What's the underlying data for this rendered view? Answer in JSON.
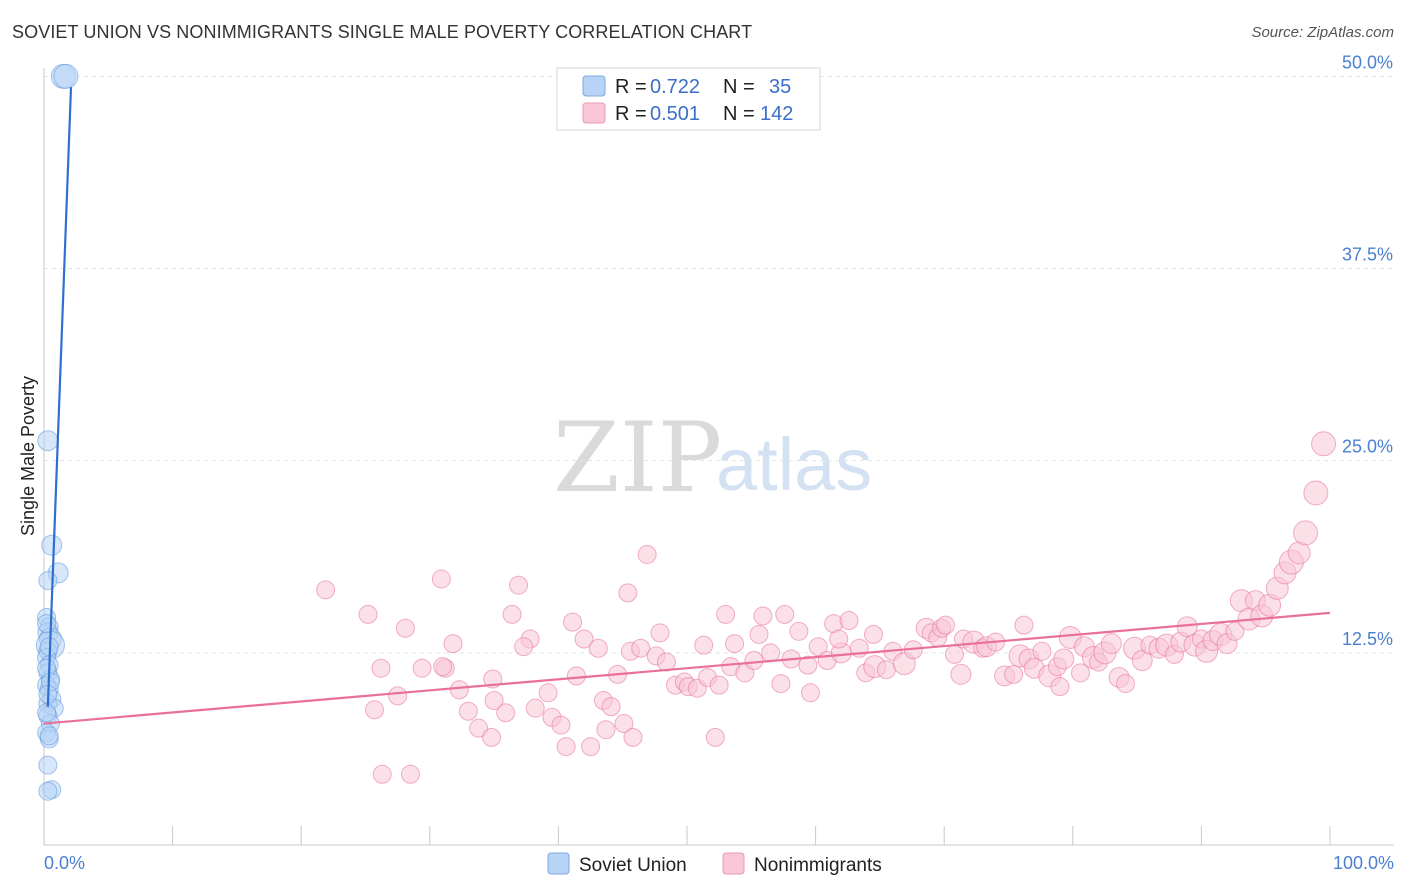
{
  "header": {
    "title": "SOVIET UNION VS NONIMMIGRANTS SINGLE MALE POVERTY CORRELATION CHART",
    "source": "Source: ZipAtlas.com"
  },
  "watermark": {
    "zip": "ZIP",
    "atlas": "atlas"
  },
  "legend": {
    "rows": [
      {
        "r_label": "R =",
        "r_value": "0.722",
        "n_label": "N =",
        "n_value": "35",
        "color": "#b7d3f5"
      },
      {
        "r_label": "R =",
        "r_value": "0.501",
        "n_label": "N =",
        "n_value": "142",
        "color": "#f8c6d6"
      }
    ]
  },
  "bottom_legend": {
    "series1": "Soviet Union",
    "series2": "Nonimmigrants"
  },
  "chart_data": {
    "type": "scatter",
    "ylabel": "Single Male Poverty",
    "xlabel": "",
    "x_tick_labels": [
      "0.0%",
      "100.0%"
    ],
    "y_tick_labels": [
      "12.5%",
      "25.0%",
      "37.5%",
      "50.0%"
    ],
    "y_ticks": [
      12.5,
      25,
      37.5,
      50
    ],
    "xlim": [
      0,
      100
    ],
    "ylim": [
      0,
      51
    ],
    "grid": true,
    "legend_position": "top-center",
    "colors": {
      "soviet": "#5b93dc",
      "soviet_fill": "#b7d3f5",
      "nonimm": "#e8709a",
      "nonimm_fill": "#f8c6d6",
      "accent": "#4a7fd0"
    },
    "series": [
      {
        "name": "Soviet Union",
        "trend": {
          "x": [
            0.3,
            2.1
          ],
          "y": [
            9,
            49.3
          ]
        },
        "points": [
          [
            1.5,
            50.0,
            12
          ],
          [
            1.7,
            50.0,
            12
          ],
          [
            0.3,
            26.3,
            10
          ],
          [
            0.6,
            19.5,
            10
          ],
          [
            1.1,
            17.7,
            10
          ],
          [
            0.3,
            17.2,
            9
          ],
          [
            0.2,
            14.8,
            9
          ],
          [
            0.4,
            14.2,
            9
          ],
          [
            0.3,
            13.8,
            10
          ],
          [
            0.5,
            13.4,
            11
          ],
          [
            0.5,
            13.0,
            14
          ],
          [
            0.3,
            12.6,
            9
          ],
          [
            0.2,
            12.2,
            9
          ],
          [
            0.4,
            11.7,
            9
          ],
          [
            0.3,
            11.2,
            9
          ],
          [
            0.5,
            10.8,
            9
          ],
          [
            0.2,
            10.4,
            9
          ],
          [
            0.4,
            10.1,
            9
          ],
          [
            0.6,
            9.5,
            9
          ],
          [
            0.3,
            9.2,
            9
          ],
          [
            0.8,
            8.9,
            9
          ],
          [
            0.3,
            8.4,
            9
          ],
          [
            0.5,
            7.9,
            9
          ],
          [
            0.2,
            7.3,
            9
          ],
          [
            0.4,
            6.9,
            9
          ],
          [
            0.3,
            5.2,
            9
          ],
          [
            0.6,
            3.6,
            9
          ],
          [
            0.3,
            3.5,
            9
          ],
          [
            0.2,
            11.5,
            9
          ],
          [
            0.4,
            12.9,
            9
          ],
          [
            0.2,
            14.4,
            9
          ],
          [
            0.5,
            10.6,
            9
          ],
          [
            0.3,
            9.8,
            9
          ],
          [
            0.4,
            7.1,
            9
          ],
          [
            0.2,
            8.6,
            9
          ]
        ]
      },
      {
        "name": "Nonimmigrants",
        "trend": {
          "x": [
            0,
            100
          ],
          "y": [
            7.9,
            15.1
          ]
        },
        "points": [
          [
            21.9,
            16.6,
            9
          ],
          [
            25.2,
            15.0,
            9
          ],
          [
            26.2,
            11.5,
            9
          ],
          [
            28.1,
            14.1,
            9
          ],
          [
            25.7,
            8.8,
            9
          ],
          [
            26.3,
            4.6,
            9
          ],
          [
            28.5,
            4.6,
            9
          ],
          [
            27.5,
            9.7,
            9
          ],
          [
            29.4,
            11.5,
            9
          ],
          [
            31.2,
            11.5,
            9
          ],
          [
            31.0,
            11.6,
            9
          ],
          [
            30.9,
            17.3,
            9
          ],
          [
            31.8,
            13.1,
            9
          ],
          [
            33.0,
            8.7,
            9
          ],
          [
            33.8,
            7.6,
            9
          ],
          [
            34.8,
            7.0,
            9
          ],
          [
            35.0,
            9.4,
            9
          ],
          [
            35.9,
            8.6,
            9
          ],
          [
            36.4,
            15.0,
            9
          ],
          [
            36.9,
            16.9,
            9
          ],
          [
            37.8,
            13.4,
            9
          ],
          [
            38.2,
            8.9,
            9
          ],
          [
            39.2,
            9.9,
            9
          ],
          [
            39.5,
            8.3,
            9
          ],
          [
            40.2,
            7.8,
            9
          ],
          [
            40.6,
            6.4,
            9
          ],
          [
            41.4,
            11.0,
            9
          ],
          [
            42.0,
            13.4,
            9
          ],
          [
            42.5,
            6.4,
            9
          ],
          [
            43.1,
            12.8,
            9
          ],
          [
            43.5,
            9.4,
            9
          ],
          [
            44.1,
            9.0,
            9
          ],
          [
            44.6,
            11.1,
            9
          ],
          [
            45.1,
            7.9,
            9
          ],
          [
            45.6,
            12.6,
            9
          ],
          [
            45.8,
            7.0,
            9
          ],
          [
            45.4,
            16.4,
            9
          ],
          [
            46.4,
            12.8,
            9
          ],
          [
            46.9,
            18.9,
            9
          ],
          [
            47.6,
            12.3,
            9
          ],
          [
            47.9,
            13.8,
            9
          ],
          [
            48.4,
            11.9,
            9
          ],
          [
            49.1,
            10.4,
            9
          ],
          [
            49.8,
            10.6,
            9
          ],
          [
            50.1,
            10.3,
            9
          ],
          [
            50.8,
            10.2,
            9
          ],
          [
            51.6,
            10.9,
            9
          ],
          [
            52.2,
            7.0,
            9
          ],
          [
            52.5,
            10.4,
            9
          ],
          [
            53.4,
            11.6,
            9
          ],
          [
            53.7,
            13.1,
            9
          ],
          [
            54.5,
            11.2,
            9
          ],
          [
            55.2,
            12.0,
            9
          ],
          [
            55.6,
            13.7,
            9
          ],
          [
            55.9,
            14.9,
            9
          ],
          [
            56.5,
            12.5,
            9
          ],
          [
            57.3,
            10.5,
            9
          ],
          [
            58.1,
            12.1,
            9
          ],
          [
            58.7,
            13.9,
            9
          ],
          [
            59.4,
            11.7,
            9
          ],
          [
            59.6,
            9.9,
            9
          ],
          [
            60.2,
            12.9,
            9
          ],
          [
            60.9,
            12.0,
            9
          ],
          [
            61.4,
            14.4,
            9
          ],
          [
            62.0,
            12.5,
            10
          ],
          [
            62.6,
            14.6,
            9
          ],
          [
            63.4,
            12.8,
            9
          ],
          [
            63.9,
            11.2,
            9
          ],
          [
            64.6,
            11.6,
            11
          ],
          [
            65.5,
            11.4,
            9
          ],
          [
            66.0,
            12.6,
            9
          ],
          [
            66.9,
            11.8,
            11
          ],
          [
            67.6,
            12.7,
            9
          ],
          [
            68.6,
            14.1,
            10
          ],
          [
            69.0,
            13.8,
            9
          ],
          [
            69.5,
            13.5,
            9
          ],
          [
            69.8,
            14.1,
            9
          ],
          [
            70.8,
            12.4,
            9
          ],
          [
            71.5,
            13.4,
            9
          ],
          [
            72.3,
            13.2,
            11
          ],
          [
            73.0,
            12.8,
            9
          ],
          [
            73.3,
            12.9,
            10
          ],
          [
            74.0,
            13.2,
            9
          ],
          [
            74.7,
            11.0,
            10
          ],
          [
            75.4,
            11.1,
            9
          ],
          [
            75.9,
            12.3,
            11
          ],
          [
            76.6,
            12.1,
            10
          ],
          [
            77.0,
            11.5,
            10
          ],
          [
            77.6,
            12.6,
            9
          ],
          [
            78.2,
            11.0,
            11
          ],
          [
            78.8,
            11.6,
            9
          ],
          [
            79.3,
            12.1,
            10
          ],
          [
            79.8,
            13.5,
            11
          ],
          [
            80.6,
            11.2,
            9
          ],
          [
            80.9,
            12.9,
            10
          ],
          [
            81.6,
            12.2,
            11
          ],
          [
            82.0,
            11.9,
            9
          ],
          [
            82.5,
            12.5,
            11
          ],
          [
            83.0,
            13.1,
            10
          ],
          [
            83.6,
            10.9,
            10
          ],
          [
            84.1,
            10.5,
            9
          ],
          [
            84.8,
            12.8,
            11
          ],
          [
            85.4,
            12.0,
            10
          ],
          [
            86.0,
            13.0,
            9
          ],
          [
            86.7,
            12.8,
            10
          ],
          [
            87.3,
            13.0,
            11
          ],
          [
            87.9,
            12.4,
            9
          ],
          [
            88.4,
            13.2,
            10
          ],
          [
            88.9,
            14.2,
            10
          ],
          [
            89.5,
            13.0,
            11
          ],
          [
            90.0,
            13.4,
            9
          ],
          [
            90.4,
            12.6,
            11
          ],
          [
            90.9,
            13.3,
            10
          ],
          [
            91.5,
            13.7,
            11
          ],
          [
            92.0,
            13.1,
            10
          ],
          [
            92.6,
            13.9,
            9
          ],
          [
            93.1,
            15.9,
            11
          ],
          [
            93.7,
            14.7,
            11
          ],
          [
            94.2,
            15.9,
            10
          ],
          [
            94.7,
            14.9,
            11
          ],
          [
            95.3,
            15.6,
            11
          ],
          [
            95.9,
            16.7,
            11
          ],
          [
            96.5,
            17.7,
            11
          ],
          [
            97.0,
            18.4,
            12
          ],
          [
            97.6,
            19.0,
            11
          ],
          [
            98.1,
            20.3,
            12
          ],
          [
            98.9,
            22.9,
            12
          ],
          [
            99.5,
            26.1,
            12
          ],
          [
            37.3,
            12.9,
            9
          ],
          [
            32.3,
            10.1,
            9
          ],
          [
            34.9,
            10.8,
            9
          ],
          [
            41.1,
            14.5,
            9
          ],
          [
            43.7,
            7.5,
            9
          ],
          [
            51.3,
            13.0,
            9
          ],
          [
            53.0,
            15.0,
            9
          ],
          [
            57.6,
            15.0,
            9
          ],
          [
            61.8,
            13.4,
            9
          ],
          [
            64.5,
            13.7,
            9
          ],
          [
            70.1,
            14.3,
            9
          ],
          [
            71.3,
            11.1,
            10
          ],
          [
            76.2,
            14.3,
            9
          ],
          [
            79.0,
            10.3,
            9
          ]
        ]
      }
    ]
  }
}
